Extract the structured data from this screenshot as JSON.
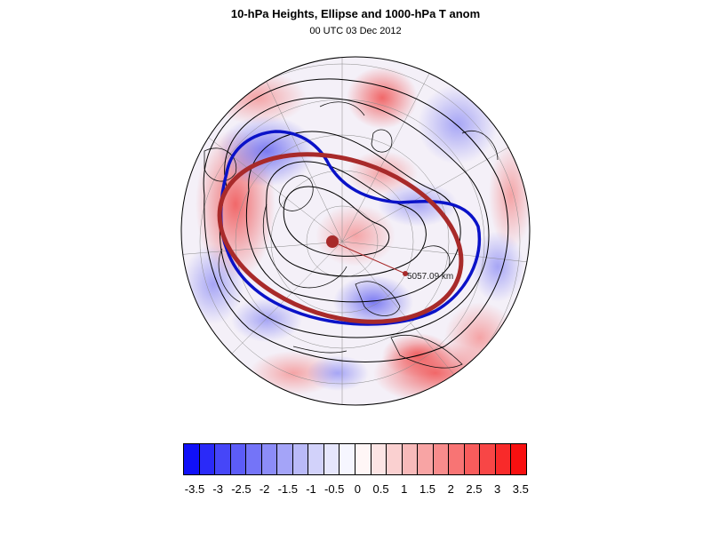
{
  "title": "10-hPa Heights, Ellipse and 1000-hPa T anom",
  "subtitle": "00 UTC 03 Dec 2012",
  "map": {
    "projection": "polar-stereographic-north",
    "colorscale": "blue-white-red",
    "distance_label": "5057.09 km",
    "ellipse_color": "#a82a2a",
    "contour_highlight_color": "#0a12c8"
  },
  "colorbar": {
    "colors": [
      "#1010f8",
      "#2a2af8",
      "#4646f8",
      "#5c5cf8",
      "#7474f8",
      "#8c8cf8",
      "#a4a4f8",
      "#babaf8",
      "#d2d2fa",
      "#e6e6fc",
      "#f6f6ff",
      "#fff6f6",
      "#fce4e4",
      "#fad0d0",
      "#f8baba",
      "#f8a4a4",
      "#f88c8c",
      "#f87474",
      "#f85c5c",
      "#f84646",
      "#f82a2a",
      "#f81010"
    ],
    "labels": [
      "-3.5",
      "-3",
      "-2.5",
      "-2",
      "-1.5",
      "-1",
      "-0.5",
      "0",
      "0.5",
      "1",
      "1.5",
      "2",
      "2.5",
      "3",
      "3.5"
    ]
  }
}
